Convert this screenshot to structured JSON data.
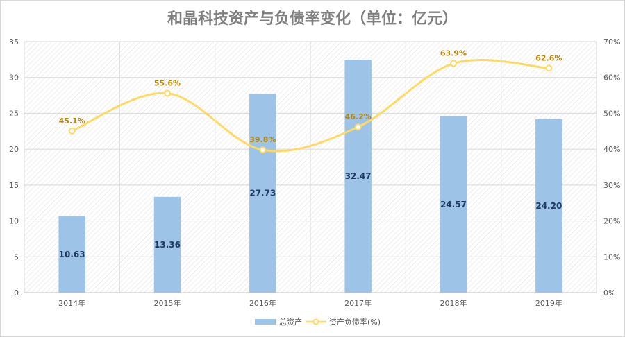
{
  "chart_data": {
    "type": "bar",
    "title": "和晶科技资产与负债率变化（单位：亿元）",
    "categories": [
      "2014年",
      "2015年",
      "2016年",
      "2017年",
      "2018年",
      "2019年"
    ],
    "series": [
      {
        "name": "总资产",
        "type": "bar",
        "axis": "left",
        "color": "#9dc3e6",
        "values": [
          10.63,
          13.36,
          27.73,
          32.47,
          24.57,
          24.2
        ],
        "labels": [
          "10.63",
          "13.36",
          "27.73",
          "32.47",
          "24.57",
          "24.20"
        ]
      },
      {
        "name": "资产负债率(%)",
        "type": "line",
        "axis": "right",
        "color": "#ffd966",
        "values": [
          45.1,
          55.6,
          39.8,
          46.2,
          63.9,
          62.6
        ],
        "labels": [
          "45.1%",
          "55.6%",
          "39.8%",
          "46.2%",
          "63.9%",
          "62.6%"
        ]
      }
    ],
    "y_left": {
      "min": 0,
      "max": 35,
      "ticks": [
        0,
        5,
        10,
        15,
        20,
        25,
        30,
        35
      ],
      "tick_labels": [
        "0",
        "5",
        "10",
        "15",
        "20",
        "25",
        "30",
        "35"
      ]
    },
    "y_right": {
      "min": 0,
      "max": 70,
      "ticks": [
        0,
        10,
        20,
        30,
        40,
        50,
        60,
        70
      ],
      "tick_labels": [
        "0%",
        "10%",
        "20%",
        "30%",
        "40%",
        "50%",
        "60%",
        "70%"
      ]
    },
    "xlabel": "",
    "ylabel": "",
    "grid": true,
    "legend_position": "bottom-center"
  }
}
